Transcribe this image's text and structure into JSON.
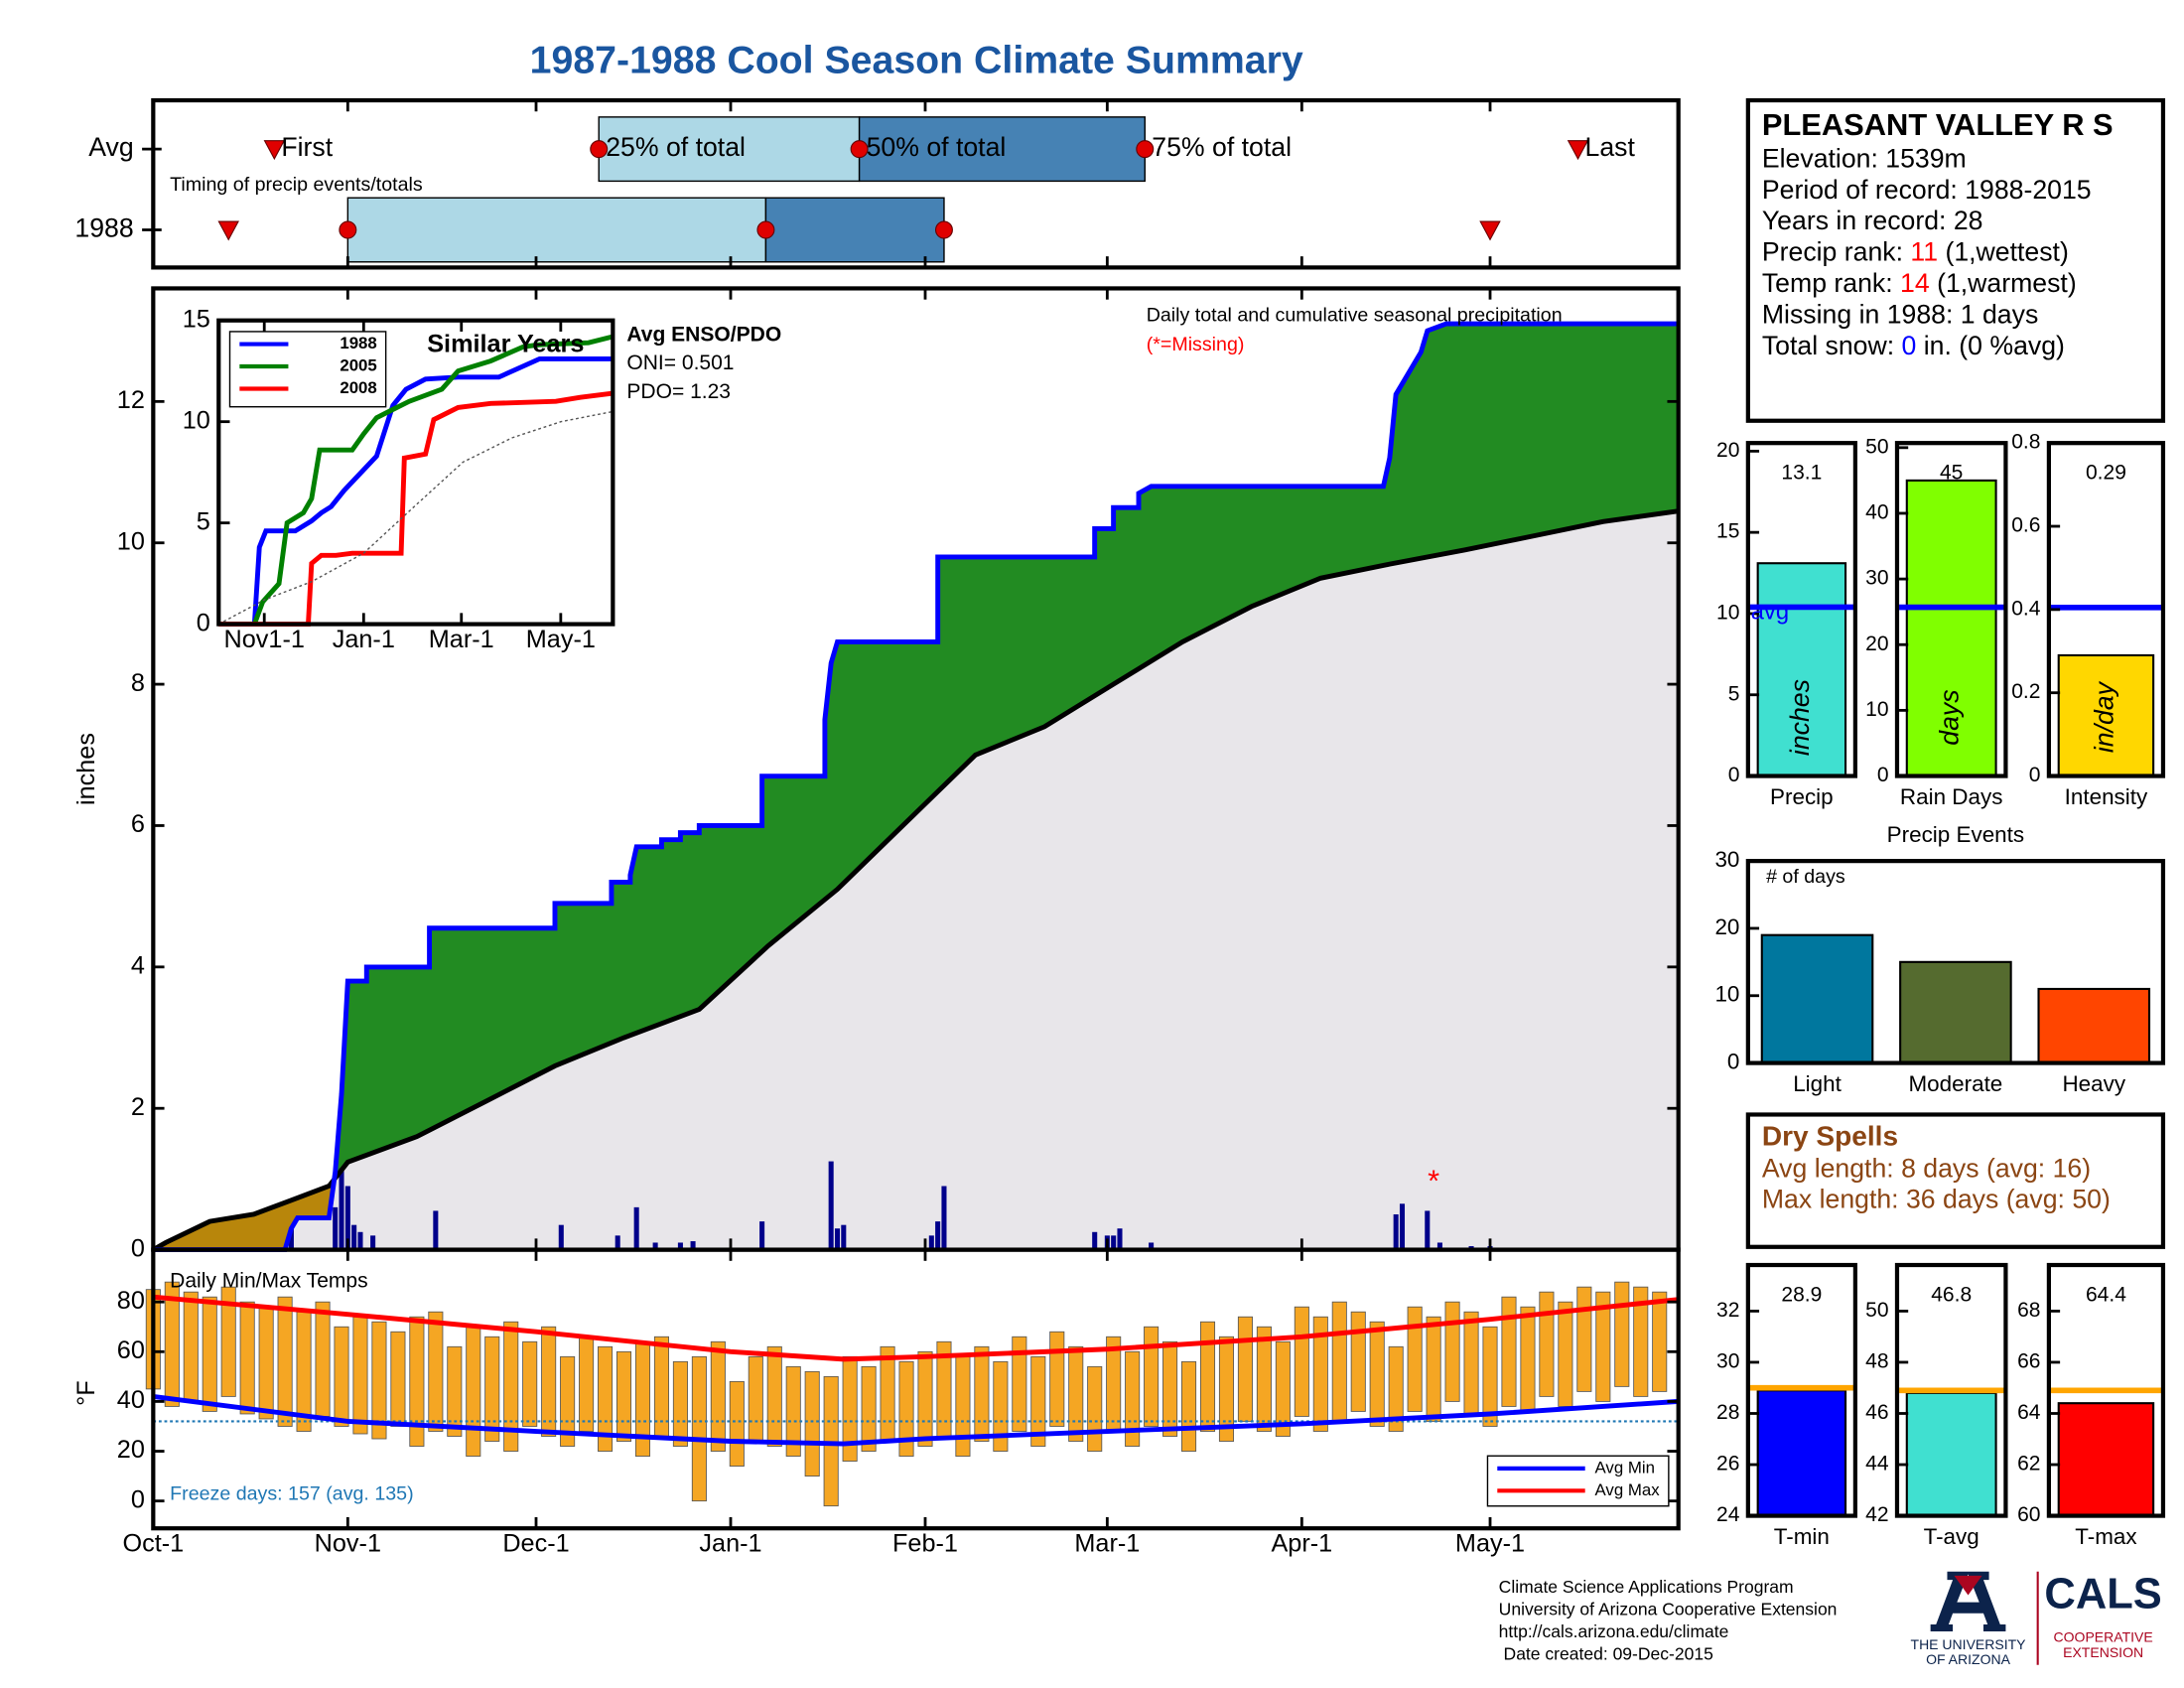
{
  "title": "1987-1988 Cool Season Climate Summary",
  "chart_data": [
    {
      "type": "timing",
      "note": "Timing of precip events/totals",
      "rows": [
        {
          "label": "Avg",
          "values": [
            19.3,
            71,
            112.5,
            158,
            227
          ]
        },
        {
          "label": "1988",
          "values": [
            12,
            31,
            97.6,
            126,
            213
          ]
        }
      ],
      "marker_labels": [
        "First",
        "25% of total",
        "50% of total",
        "75% of total",
        "Last"
      ],
      "colors": {
        "marker": "#e00000",
        "box_low": "#add8e6",
        "box_high": "#4682b4"
      },
      "xlim": [
        0,
        243
      ],
      "xticks": [
        31,
        61,
        92,
        123,
        152,
        183,
        213
      ]
    },
    {
      "type": "precip",
      "annotation": "Daily total and cumulative seasonal precipitation",
      "missing_note": "(*=Missing)",
      "ylabel": "inches",
      "xlim": [
        0,
        243
      ],
      "xticks": [
        31,
        61,
        92,
        123,
        152,
        183,
        213
      ],
      "ylim": [
        0,
        13.6
      ],
      "yticks": [
        0,
        2,
        4,
        6,
        8,
        10,
        12
      ],
      "cumulative": {
        "color": "#0000ff",
        "x": [
          0,
          21,
          22,
          23,
          28,
          29,
          30,
          31,
          34,
          34,
          44,
          44,
          64,
          64,
          73,
          73,
          76,
          76,
          77,
          81,
          81,
          84,
          84,
          87,
          87,
          97,
          97,
          107,
          107,
          108,
          109,
          125,
          125,
          150,
          150,
          153,
          153,
          157,
          157,
          159,
          196,
          197,
          198,
          202,
          203,
          206,
          243
        ],
        "values": [
          0,
          0,
          0.3,
          0.45,
          0.45,
          1.1,
          2.2,
          3.8,
          3.8,
          4.0,
          4.0,
          4.55,
          4.55,
          4.9,
          4.9,
          5.2,
          5.2,
          5.3,
          5.7,
          5.7,
          5.8,
          5.8,
          5.9,
          5.9,
          6.0,
          6.0,
          6.7,
          6.7,
          7.5,
          8.3,
          8.6,
          8.6,
          9.8,
          9.8,
          10.2,
          10.2,
          10.5,
          10.5,
          10.7,
          10.8,
          10.8,
          11.2,
          12.1,
          12.7,
          13.0,
          13.1,
          13.1
        ]
      },
      "average": {
        "color": "#000000",
        "x": [
          0,
          2,
          9,
          16,
          22,
          28,
          31,
          42,
          53,
          64,
          75,
          87,
          98,
          109,
          120,
          131,
          142,
          153,
          164,
          175,
          186,
          197,
          209,
          220,
          231,
          243
        ],
        "values": [
          0,
          0.1,
          0.4,
          0.5,
          0.7,
          0.9,
          1.24,
          1.6,
          2.1,
          2.6,
          3.0,
          3.4,
          4.3,
          5.1,
          6.05,
          7.0,
          7.4,
          8.0,
          8.6,
          9.1,
          9.5,
          9.7,
          9.9,
          10.1,
          10.3,
          10.45
        ]
      },
      "daily": {
        "color": "#00008b",
        "x": [
          22,
          29,
          30,
          31,
          32,
          33,
          35,
          45,
          65,
          74,
          77,
          80,
          84,
          86,
          97,
          108,
          109,
          110,
          124,
          125,
          126,
          150,
          152,
          153,
          154,
          159,
          198,
          199,
          203,
          205,
          210,
          213
        ],
        "values": [
          0.3,
          0.6,
          1.15,
          0.9,
          0.35,
          0.25,
          0.2,
          0.55,
          0.35,
          0.2,
          0.6,
          0.1,
          0.1,
          0.12,
          0.4,
          1.25,
          0.3,
          0.35,
          0.2,
          0.4,
          0.9,
          0.25,
          0.2,
          0.2,
          0.3,
          0.1,
          0.5,
          0.65,
          0.55,
          0.1,
          0.05,
          0.05
        ]
      },
      "missing": {
        "x": [
          204
        ],
        "marker": "*",
        "color": "#ff0000"
      },
      "fills": {
        "above": "#228b22",
        "below": "#b8860b",
        "base": "#e8e6ea"
      }
    },
    {
      "type": "line",
      "title": "Similar Years",
      "xlim": [
        3,
        245
      ],
      "xticks": [
        {
          "value": 31,
          "label": "Nov1-1"
        },
        {
          "value": 92,
          "label": "Jan-1"
        },
        {
          "value": 152,
          "label": "Mar-1"
        },
        {
          "value": 213,
          "label": "May-1"
        }
      ],
      "ylim": [
        0,
        15
      ],
      "yticks": [
        0,
        5,
        10,
        15
      ],
      "legend": "upper left",
      "series": [
        {
          "name": "1988",
          "color": "#0000ff",
          "x": [
            3,
            25,
            28,
            32,
            50,
            60,
            66,
            72,
            80,
            100,
            110,
            118,
            130,
            150,
            175,
            200,
            245
          ],
          "values": [
            0,
            0,
            3.8,
            4.6,
            4.6,
            5.1,
            5.5,
            5.8,
            6.6,
            8.3,
            10.8,
            11.6,
            12.1,
            12.2,
            12.2,
            13.1,
            13.1
          ]
        },
        {
          "name": "2005",
          "color": "#008000",
          "x": [
            3,
            25,
            30,
            40,
            45,
            55,
            60,
            65,
            85,
            92,
            100,
            110,
            120,
            140,
            150,
            170,
            190,
            200,
            230,
            245
          ],
          "values": [
            0,
            0,
            1.1,
            2,
            5,
            5.5,
            6.2,
            8.6,
            8.6,
            9.4,
            10.2,
            10.6,
            11.0,
            11.6,
            12.5,
            13.0,
            13.7,
            13.8,
            13.9,
            14.2
          ]
        },
        {
          "name": "2008",
          "color": "#ff0000",
          "x": [
            3,
            58,
            60,
            66,
            75,
            85,
            100,
            115,
            117,
            130,
            135,
            150,
            170,
            210,
            225,
            245
          ],
          "values": [
            0,
            0,
            3.0,
            3.4,
            3.4,
            3.5,
            3.5,
            3.5,
            8.2,
            8.4,
            10.1,
            10.7,
            10.9,
            11.0,
            11.2,
            11.4
          ]
        },
        {
          "color": "#555555",
          "x": [
            3,
            31,
            60,
            92,
            123,
            153,
            183,
            213,
            245
          ],
          "values": [
            0,
            1.2,
            2.1,
            3.5,
            5.8,
            8,
            9.2,
            10,
            10.5
          ]
        }
      ],
      "enso": {
        "title": "Avg ENSO/PDO",
        "lines": [
          "ONI= 0.501",
          "PDO= 1.23"
        ]
      }
    },
    {
      "type": "temp",
      "title": "Daily Min/Max Temps",
      "ylabel": "°F",
      "xlim": [
        0,
        243
      ],
      "xticks": [
        {
          "value": 0,
          "label": "Oct-1"
        },
        {
          "value": 31,
          "label": "Nov-1"
        },
        {
          "value": 61,
          "label": "Dec-1"
        },
        {
          "value": 92,
          "label": "Jan-1"
        },
        {
          "value": 123,
          "label": "Feb-1"
        },
        {
          "value": 152,
          "label": "Mar-1"
        },
        {
          "value": 183,
          "label": "Apr-1"
        },
        {
          "value": 213,
          "label": "May-1"
        }
      ],
      "ylim": [
        -11,
        101
      ],
      "yticks": [
        0,
        20,
        40,
        60,
        80
      ],
      "bar_color": "#f5a623",
      "x": [
        0,
        3,
        6,
        9,
        12,
        15,
        18,
        21,
        24,
        27,
        30,
        33,
        36,
        39,
        42,
        45,
        48,
        51,
        54,
        57,
        60,
        63,
        66,
        69,
        72,
        75,
        78,
        81,
        84,
        87,
        90,
        93,
        96,
        99,
        102,
        105,
        108,
        111,
        114,
        117,
        120,
        123,
        126,
        129,
        132,
        135,
        138,
        141,
        144,
        147,
        150,
        153,
        156,
        159,
        162,
        165,
        168,
        171,
        174,
        177,
        180,
        183,
        186,
        189,
        192,
        195,
        198,
        201,
        204,
        207,
        210,
        213,
        216,
        219,
        222,
        225,
        228,
        231,
        234,
        237,
        240
      ],
      "min": [
        45,
        38,
        40,
        36,
        42,
        35,
        33,
        30,
        28,
        34,
        30,
        27,
        25,
        30,
        22,
        28,
        26,
        18,
        24,
        20,
        30,
        26,
        22,
        28,
        20,
        24,
        18,
        26,
        22,
        0,
        20,
        14,
        24,
        22,
        18,
        10,
        -2,
        16,
        20,
        24,
        18,
        22,
        26,
        18,
        24,
        20,
        28,
        22,
        30,
        24,
        20,
        28,
        22,
        30,
        26,
        20,
        28,
        24,
        32,
        28,
        26,
        34,
        28,
        32,
        36,
        30,
        28,
        36,
        32,
        40,
        34,
        30,
        38,
        36,
        42,
        38,
        44,
        40,
        46,
        42,
        44
      ],
      "max": [
        85,
        88,
        84,
        82,
        86,
        80,
        78,
        82,
        76,
        80,
        70,
        74,
        72,
        68,
        74,
        76,
        62,
        70,
        66,
        72,
        64,
        70,
        58,
        66,
        62,
        60,
        64,
        66,
        56,
        58,
        64,
        48,
        58,
        62,
        54,
        52,
        50,
        58,
        54,
        62,
        56,
        60,
        64,
        58,
        62,
        56,
        66,
        58,
        68,
        62,
        54,
        66,
        60,
        70,
        64,
        56,
        72,
        66,
        74,
        70,
        64,
        78,
        74,
        80,
        76,
        72,
        62,
        78,
        74,
        80,
        76,
        70,
        82,
        78,
        84,
        80,
        86,
        84,
        88,
        86,
        84
      ],
      "freeze": {
        "value": 32,
        "label": "Freeze days: 157 (avg. 135)",
        "color": "#1f77b4"
      },
      "legend": "lower right",
      "series": [
        {
          "name": "Avg Min",
          "color": "#0000ff",
          "x": [
            0,
            31,
            61,
            92,
            110,
            123,
            152,
            183,
            213,
            243
          ],
          "values": [
            42,
            32,
            28,
            24,
            23,
            25,
            28,
            31,
            35,
            40
          ]
        },
        {
          "name": "Avg Max",
          "color": "#ff0000",
          "x": [
            0,
            31,
            61,
            92,
            110,
            123,
            152,
            183,
            213,
            243
          ],
          "values": [
            82,
            75,
            68,
            60,
            57,
            58,
            61,
            66,
            73,
            81
          ]
        }
      ]
    },
    {
      "type": "summary-bar",
      "category": "Precip",
      "unit": "inches",
      "value": 13.1,
      "average": 10.4,
      "avg_label": "avg",
      "color": "#40e0d0",
      "avg_color": "#0000ff",
      "ylim": [
        0,
        20.5
      ],
      "yticks": [
        0,
        5,
        10,
        15,
        20
      ]
    },
    {
      "type": "summary-bar",
      "category": "Rain Days",
      "unit": "days",
      "value": 45,
      "average": 25.7,
      "color": "#80ff00",
      "avg_color": "#0000ff",
      "ylim": [
        0,
        50.7
      ],
      "yticks": [
        0,
        10,
        20,
        30,
        40,
        50
      ]
    },
    {
      "type": "summary-bar",
      "category": "Intensity",
      "unit": "in/day",
      "value": 0.29,
      "average": 0.405,
      "color": "#ffd700",
      "avg_color": "#0000ff",
      "ylim": [
        0,
        0.8
      ],
      "yticks": [
        0,
        0.2,
        0.4,
        0.6,
        0.8
      ]
    },
    {
      "type": "bar",
      "title": "Precip Events",
      "ylabel": "# of days",
      "categories": [
        "Light",
        "Moderate",
        "Heavy"
      ],
      "values": [
        19,
        15,
        11
      ],
      "colors": [
        "#00779e",
        "#556b2f",
        "#ff4500"
      ],
      "ylim": [
        0,
        30
      ],
      "yticks": [
        0,
        10,
        20,
        30
      ]
    },
    {
      "type": "summary-bar",
      "category": "T-min",
      "value": 28.9,
      "average": 29.0,
      "color": "#0000ff",
      "avg_color": "#ffa500",
      "ylim": [
        24,
        33.8
      ],
      "yticks": [
        24,
        26,
        28,
        30,
        32
      ]
    },
    {
      "type": "summary-bar",
      "category": "T-avg",
      "value": 46.8,
      "average": 46.9,
      "color": "#40e0d0",
      "avg_color": "#ffa500",
      "ylim": [
        42,
        51.8
      ],
      "yticks": [
        42,
        44,
        46,
        48,
        50
      ]
    },
    {
      "type": "summary-bar",
      "category": "T-max",
      "value": 64.4,
      "average": 64.9,
      "color": "#ff0000",
      "avg_color": "#ffa500",
      "ylim": [
        60,
        69.8
      ],
      "yticks": [
        60,
        62,
        64,
        66,
        68
      ]
    }
  ],
  "station": {
    "name": "PLEASANT VALLEY R S",
    "lines": [
      [
        {
          "text": "Elevation: 1539m"
        }
      ],
      [
        {
          "text": "Period of record: 1988-2015"
        }
      ],
      [
        {
          "text": "Years in record: 28"
        }
      ],
      [
        {
          "text": "Precip rank: "
        },
        {
          "text": "11",
          "color": "#ff0000"
        },
        {
          "text": " (1,wettest)"
        }
      ],
      [
        {
          "text": "Temp rank: "
        },
        {
          "text": "14",
          "color": "#ff0000"
        },
        {
          "text": " (1,warmest)"
        }
      ],
      [
        {
          "text": "Missing in 1988: 1 days"
        }
      ],
      [
        {
          "text": "Total snow: "
        },
        {
          "text": "0",
          "color": "#0000ff"
        },
        {
          "text": " in. (0 %avg)"
        }
      ]
    ]
  },
  "dry_spells": {
    "title": "Dry Spells",
    "lines": [
      "Avg length: 8 days (avg: 16)",
      "Max length: 36 days (avg: 50)"
    ],
    "color": "#8b4513"
  },
  "footer": {
    "lines": [
      "Climate Science Applications Program",
      "University of Arizona Cooperative Extension",
      "http://cals.arizona.edu/climate",
      " Date created: 09-Dec-2015"
    ],
    "ua": [
      "THE UNIVERSITY",
      "OF ARIZONA"
    ],
    "cals": "CALS",
    "cals_sub": [
      "COOPERATIVE",
      "EXTENSION"
    ]
  }
}
